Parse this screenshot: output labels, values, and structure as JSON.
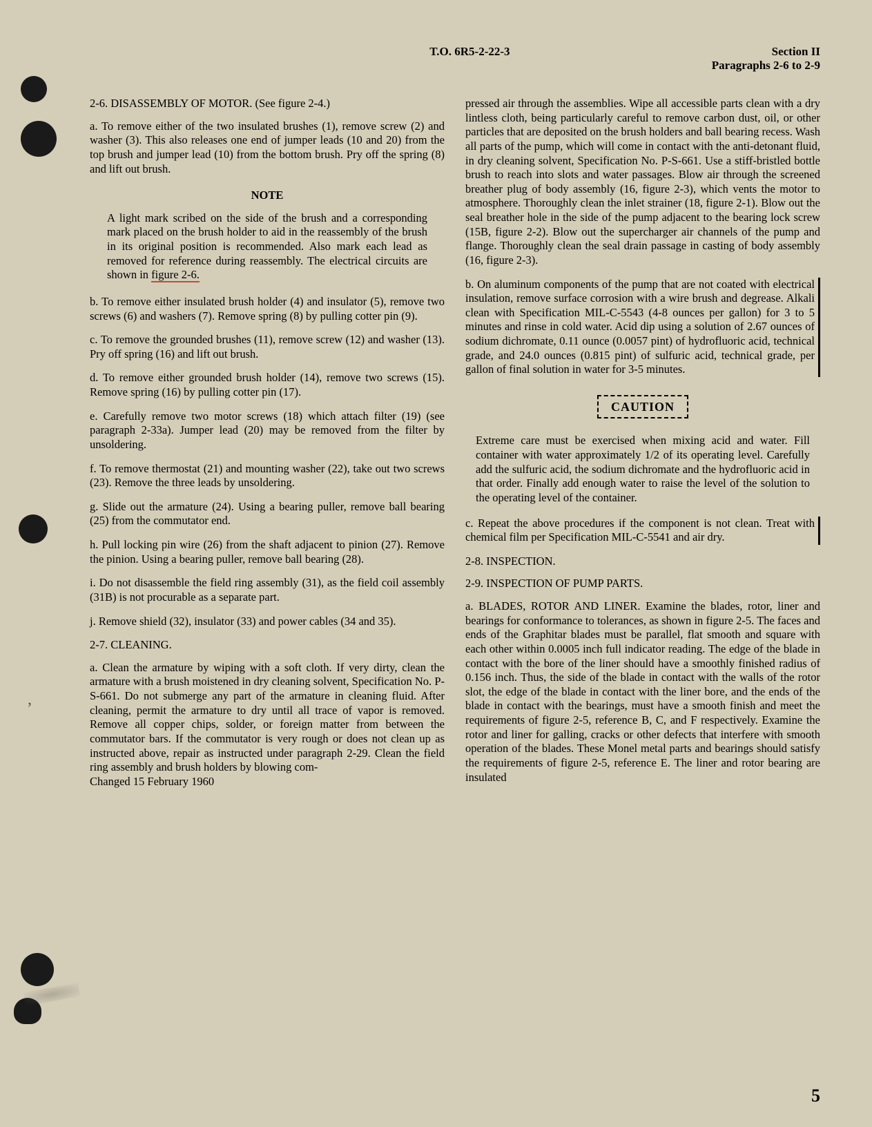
{
  "header": {
    "to_number": "T.O. 6R5-2-22-3",
    "section": "Section II",
    "paragraphs": "Paragraphs 2-6 to 2-9"
  },
  "left_column": {
    "title_2_6": "2-6. DISASSEMBLY OF MOTOR. (See figure 2-4.)",
    "para_a": "a. To remove either of the two insulated brushes (1), remove screw (2) and washer (3). This also releases one end of jumper leads (10 and 20) from the top brush and jumper lead (10) from the bottom brush. Pry off the spring (8) and lift out brush.",
    "note_heading": "NOTE",
    "note_body_1": "A light mark scribed on the side of the brush and a corresponding mark placed on the brush holder to aid in the reassembly of the brush in its original position is recommended. Also mark each lead as removed for reference during reassembly. The electrical circuits are shown in ",
    "note_figure": "figure 2-6.",
    "para_b": "b. To remove either insulated brush holder (4) and insulator (5), remove two screws (6) and washers (7). Remove spring (8) by pulling cotter pin (9).",
    "para_c": "c. To remove the grounded brushes (11), remove screw (12) and washer (13). Pry off spring (16) and lift out brush.",
    "para_d": "d. To remove either grounded brush holder (14), remove two screws (15). Remove spring (16) by pulling cotter pin (17).",
    "para_e": "e. Carefully remove two motor screws (18) which attach filter (19) (see paragraph 2-33a). Jumper lead (20) may be removed from the filter by unsoldering.",
    "para_f": "f. To remove thermostat (21) and mounting washer (22), take out two screws (23). Remove the three leads by unsoldering.",
    "para_g": "g. Slide out the armature (24). Using a bearing puller, remove ball bearing (25) from the commutator end.",
    "para_h": "h. Pull locking pin wire (26) from the shaft adjacent to pinion (27). Remove the pinion. Using a bearing puller, remove ball bearing (28).",
    "para_i": "i. Do not disassemble the field ring assembly (31), as the field coil assembly (31B) is not procurable as a separate part.",
    "para_j": "j. Remove shield (32), insulator (33) and power cables (34 and 35).",
    "title_2_7": "2-7. CLEANING.",
    "para_2_7_a": "a. Clean the armature by wiping with a soft cloth. If very dirty, clean the armature with a brush moistened in dry cleaning solvent, Specification No. P-S-661. Do not submerge any part of the armature in cleaning fluid. After cleaning, permit the armature to dry until all trace of vapor is removed. Remove all copper chips, solder, or foreign matter from between the commutator bars. If the commutator is very rough or does not clean up as instructed above, repair as instructed under paragraph 2-29. Clean the field ring assembly and brush holders by blowing com-",
    "changed_date": "Changed 15 February 1960"
  },
  "right_column": {
    "para_cont": "pressed air through the assemblies. Wipe all accessible parts clean with a dry lintless cloth, being particularly careful to remove carbon dust, oil, or other particles that are deposited on the brush holders and ball bearing recess. Wash all parts of the pump, which will come in contact with the anti-detonant fluid, in dry cleaning solvent, Specification No. P-S-661. Use a stiff-bristled bottle brush to reach into slots and water passages. Blow air through the screened breather plug of body assembly (16, figure 2-3), which vents the motor to atmosphere. Thoroughly clean the inlet strainer (18, figure 2-1). Blow out the seal breather hole in the side of the pump adjacent to the bearing lock screw (15B, figure 2-2). Blow out the supercharger air channels of the pump and flange. Thoroughly clean the seal drain passage in casting of body assembly (16, figure 2-3).",
    "para_2_7_b": "b. On aluminum components of the pump that are not coated with electrical insulation, remove surface corrosion with a wire brush and degrease. Alkali clean with Specification MIL-C-5543 (4-8 ounces per gallon) for 3 to 5 minutes and rinse in cold water. Acid dip using a solution of 2.67 ounces of sodium dichromate, 0.11 ounce (0.0057 pint) of hydrofluoric acid, technical grade, and 24.0 ounces (0.815 pint) of sulfuric acid, technical grade, per gallon of final solution in water for 3-5 minutes.",
    "caution_label": "CAUTION",
    "caution_body": "Extreme care must be exercised when mixing acid and water. Fill container with water approximately 1/2 of its operating level. Carefully add the sulfuric acid, the sodium dichromate and the hydrofluoric acid in that order. Finally add enough water to raise the level of the solution to the operating level of the container.",
    "para_2_7_c": "c. Repeat the above procedures if the component is not clean. Treat with chemical film per Specification MIL-C-5541 and air dry.",
    "title_2_8": "2-8. INSPECTION.",
    "title_2_9": "2-9. INSPECTION OF PUMP PARTS.",
    "para_2_9_a": "a. BLADES, ROTOR AND LINER. Examine the blades, rotor, liner and bearings for conformance to tolerances, as shown in figure 2-5. The faces and ends of the Graphitar blades must be parallel, flat smooth and square with each other within 0.0005 inch full indicator reading. The edge of the blade in contact with the bore of the liner should have a smoothly finished radius of 0.156 inch. Thus, the side of the blade in contact with the walls of the rotor slot, the edge of the blade in contact with the liner bore, and the ends of the blade in contact with the bearings, must have a smooth finish and meet the requirements of figure 2-5, reference B, C, and F respectively. Examine the rotor and liner for galling, cracks or other defects that interfere with smooth operation of the blades. These Monel metal parts and bearings should satisfy the requirements of figure 2-5, reference E. The liner and rotor bearing are insulated"
  },
  "page_number": "5"
}
